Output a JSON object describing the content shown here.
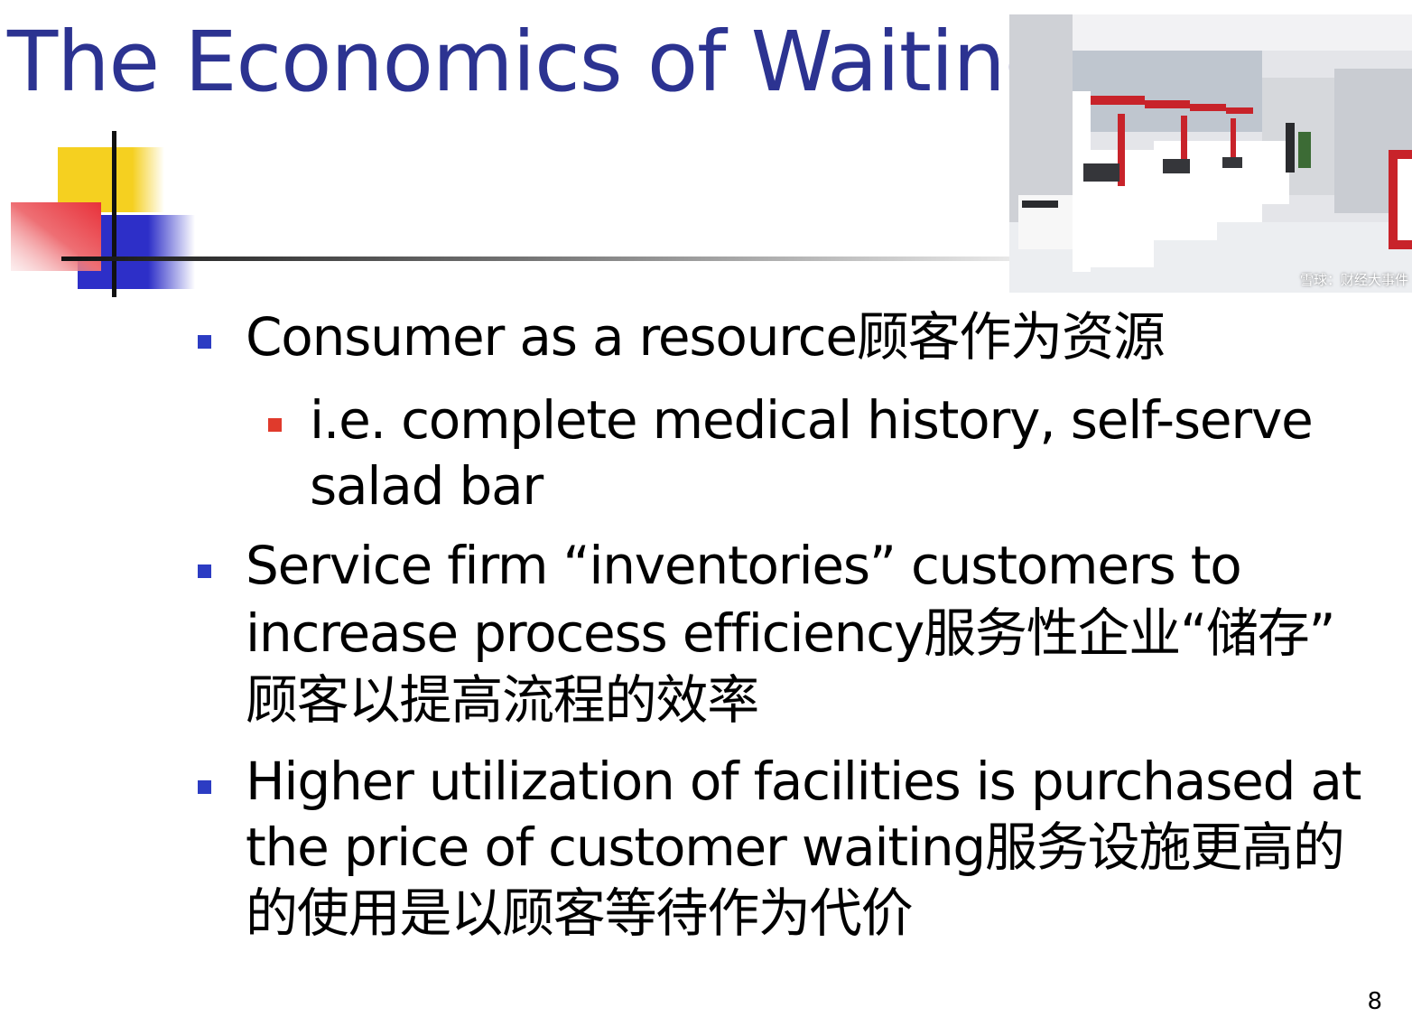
{
  "slide": {
    "title": "The Economics of Waiting",
    "page_number": "8"
  },
  "photo": {
    "icon": "bank-self-service-kiosks-photo",
    "watermark": "雪球：财经大事件"
  },
  "bullets": [
    {
      "level": 1,
      "lines": [
        "Consumer as a resource顾客作为资源"
      ]
    },
    {
      "level": 2,
      "lines": [
        "i.e. complete medical history, self-serve",
        "salad bar"
      ]
    },
    {
      "level": 1,
      "lines": [
        "Service firm “inventories” customers to",
        "increase process efficiency服务性企业“储存”",
        "顾客以提高流程的效率"
      ]
    },
    {
      "level": 1,
      "lines": [
        "Higher utilization of facilities is purchased at",
        "the price of customer waiting服务设施更高的",
        "的使用是以顾客等待作为代价"
      ]
    }
  ],
  "colors": {
    "title": "#2c3391",
    "bullet_level1": "#2c3cc3",
    "bullet_level2": "#e03a2c",
    "deco_yellow": "#f5d020",
    "deco_red": "#e8313a",
    "deco_blue": "#2d2fc8"
  }
}
